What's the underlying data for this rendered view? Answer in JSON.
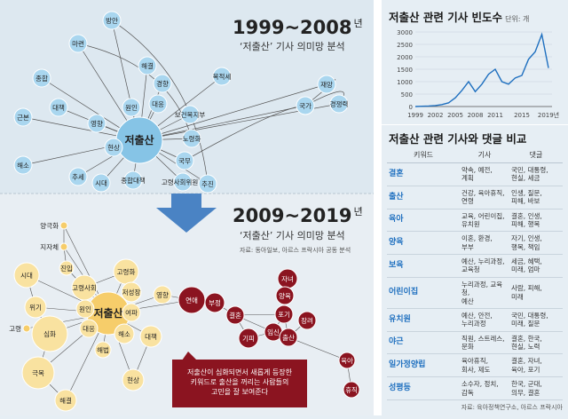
{
  "chart_data": [
    {
      "type": "network",
      "title_years": "1999~2008",
      "title_suffix": "년",
      "subtitle": "‘저출산’ 기사 의미망 분석",
      "center": "저출산",
      "nodes": [
        "방안",
        "마련",
        "해결",
        "종합",
        "경향",
        "대응",
        "원인",
        "보건복지부",
        "노령화",
        "목적세",
        "재앙",
        "국가",
        "경쟁력",
        "대책",
        "영향",
        "현상",
        "국무",
        "고령사회위원회",
        "종합대책",
        "시대",
        "추세",
        "해소",
        "근본",
        "추진"
      ]
    },
    {
      "type": "network",
      "title_years": "2009~2019",
      "title_suffix": "년",
      "subtitle": "‘저출산’ 기사 의미망 분석",
      "source": "자료: 동아일보, 아르스 프락시아 공동 분석",
      "center": "저출산",
      "nodes": [
        "양극화",
        "지자체",
        "진입",
        "고령사회",
        "고령화",
        "저성장",
        "시대",
        "위기",
        "원인",
        "여파",
        "고령",
        "심화",
        "대응",
        "해소",
        "대책",
        "영향",
        "극복",
        "해결",
        "해법",
        "현상",
        "연애",
        "부정",
        "결혼",
        "기피",
        "임신",
        "출산",
        "자녀",
        "양육",
        "포기",
        "장려",
        "육아",
        "휴직"
      ],
      "callout": "저출산이 심화되면서 새롭게 등장한 키워드로 출산을 꺼리는 사람들의 고민을 잘 보여준다"
    },
    {
      "type": "line",
      "title": "저출산 관련 기사 빈도수",
      "unit": "단위: 개",
      "x": [
        1999,
        2000,
        2001,
        2002,
        2003,
        2004,
        2005,
        2006,
        2007,
        2008,
        2009,
        2010,
        2011,
        2012,
        2013,
        2014,
        2015,
        2016,
        2017,
        2018,
        2019
      ],
      "values": [
        0,
        10,
        20,
        40,
        80,
        150,
        350,
        650,
        1000,
        600,
        900,
        1300,
        1500,
        1000,
        900,
        1150,
        1250,
        1900,
        2200,
        2900,
        1550
      ],
      "xticks": [
        "1999",
        "2002",
        "2005",
        "2008",
        "2011",
        "2015",
        "2019년"
      ],
      "yticks": [
        0,
        500,
        1000,
        1500,
        2000,
        2500,
        3000
      ],
      "ylim": [
        0,
        3000
      ]
    },
    {
      "type": "table",
      "title": "저출산 관련 기사와 댓글 비교",
      "columns": [
        "키워드",
        "기사",
        "댓글"
      ],
      "rows": [
        [
          "결혼",
          "약속, 예전,\n계획",
          "국민, 대통령,\n현실, 세금"
        ],
        [
          "출산",
          "건강, 육아휴직,\n연령",
          "인생, 질문,\n피해, 바보"
        ],
        [
          "육아",
          "교육, 어린이집,\n유치원",
          "결혼, 인생,\n피해, 행복"
        ],
        [
          "양육",
          "이혼, 환경,\n부부",
          "자기, 인생,\n행복, 책임"
        ],
        [
          "보육",
          "예산, 누리과정,\n교육청",
          "세금, 혜택,\n미래, 엄마"
        ],
        [
          "어린이집",
          "누리과정, 교육청,\n예산",
          "사람, 피해,\n미래"
        ],
        [
          "유치원",
          "예산, 안전,\n누리과정",
          "국민, 대통령,\n미래, 질문"
        ],
        [
          "야근",
          "직원, 스트레스,\n문화",
          "결혼, 한국,\n현실, 노력"
        ],
        [
          "일가정양립",
          "육아휴직,\n회사, 제도",
          "결혼, 자녀,\n육아, 포기"
        ],
        [
          "성평등",
          "소수자, 정치,\n감독",
          "한국, 군대,\n의무, 결혼"
        ]
      ],
      "source": "자료: 육아정책연구소, 아르스 프락시아"
    }
  ]
}
